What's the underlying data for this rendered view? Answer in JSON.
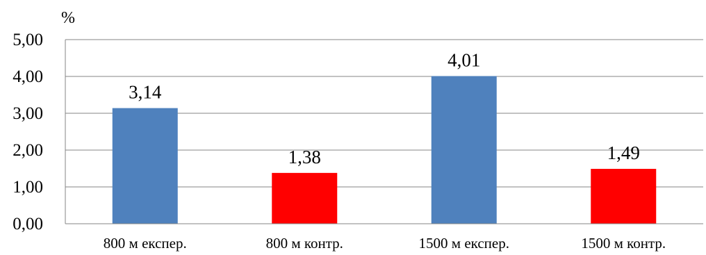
{
  "chart_data": {
    "type": "bar",
    "categories": [
      "800 м експер.",
      "800 м контр.",
      "1500 м експер.",
      "1500 м контр."
    ],
    "values": [
      3.14,
      1.38,
      4.01,
      1.49
    ],
    "data_labels": [
      "3,14",
      "1,38",
      "4,01",
      "1,49"
    ],
    "bar_colors": [
      "#4F81BD",
      "#FF0000",
      "#4F81BD",
      "#FF0000"
    ],
    "ylabel": "%",
    "ylim": [
      0,
      5
    ],
    "yticks": [
      0,
      1,
      2,
      3,
      4,
      5
    ],
    "ytick_labels": [
      "0,00",
      "1,00",
      "2,00",
      "3,00",
      "4,00",
      "5,00"
    ],
    "grid": true,
    "grid_color": "#868686"
  }
}
